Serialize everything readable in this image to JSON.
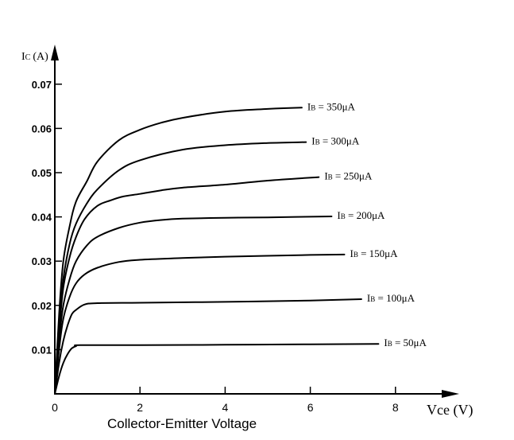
{
  "chart_data": {
    "type": "line",
    "title": "",
    "xlabel": "Collector-Emitter Voltage",
    "x_axis_name": "Vce (V)",
    "y_axis_name": "Ic (A)",
    "x_ticks": [
      0,
      2,
      4,
      6,
      8
    ],
    "y_ticks": [
      0.01,
      0.02,
      0.03,
      0.04,
      0.05,
      0.06,
      0.07
    ],
    "y_tick_labels": [
      "0.01",
      "0.02",
      "0.03",
      "0.04",
      "0.05",
      "0.06",
      "0.07"
    ],
    "xlim": [
      0,
      9
    ],
    "ylim": [
      0,
      0.077
    ],
    "grid": false,
    "series": [
      {
        "name": "IB = 50μA",
        "base": "B",
        "value": " = 50μA",
        "x": [
          0,
          0.1,
          0.2,
          0.3,
          0.4,
          0.5,
          0.6,
          2,
          4,
          6,
          7.6
        ],
        "y": [
          0,
          0.004,
          0.007,
          0.009,
          0.0103,
          0.0108,
          0.011,
          0.011,
          0.0111,
          0.0112,
          0.0113
        ]
      },
      {
        "name": "IB = 100μA",
        "base": "B",
        "value": " = 100μA",
        "x": [
          0,
          0.1,
          0.2,
          0.3,
          0.4,
          0.5,
          0.7,
          1.0,
          2,
          4,
          6,
          7.2
        ],
        "y": [
          0,
          0.007,
          0.012,
          0.0155,
          0.018,
          0.019,
          0.0202,
          0.0205,
          0.0206,
          0.0208,
          0.0211,
          0.0214
        ]
      },
      {
        "name": "IB = 150μA",
        "base": "B",
        "value": " = 150μA",
        "x": [
          0,
          0.1,
          0.2,
          0.35,
          0.5,
          0.7,
          1.0,
          1.5,
          2,
          3,
          4,
          6,
          6.8
        ],
        "y": [
          0,
          0.01,
          0.017,
          0.022,
          0.025,
          0.027,
          0.0285,
          0.0298,
          0.0303,
          0.0307,
          0.031,
          0.0314,
          0.0315
        ]
      },
      {
        "name": "IB = 200μA",
        "base": "B",
        "value": " = 200μA",
        "x": [
          0,
          0.1,
          0.2,
          0.35,
          0.5,
          0.75,
          1.0,
          1.5,
          2,
          2.5,
          3,
          4,
          5,
          6.5
        ],
        "y": [
          0,
          0.012,
          0.02,
          0.026,
          0.03,
          0.0335,
          0.0355,
          0.0375,
          0.0387,
          0.0393,
          0.0396,
          0.0398,
          0.0399,
          0.0401
        ]
      },
      {
        "name": "IB = 250μA",
        "base": "B",
        "value": " = 250μA",
        "x": [
          0,
          0.1,
          0.2,
          0.35,
          0.5,
          0.7,
          1.0,
          1.3,
          1.6,
          2,
          2.5,
          3,
          4,
          5,
          6.2
        ],
        "y": [
          0,
          0.014,
          0.024,
          0.031,
          0.0355,
          0.0395,
          0.0425,
          0.0437,
          0.0446,
          0.0452,
          0.046,
          0.0466,
          0.0473,
          0.0482,
          0.049
        ]
      },
      {
        "name": "IB = 300μA",
        "base": "B",
        "value": " = 300μA",
        "x": [
          0,
          0.1,
          0.2,
          0.35,
          0.5,
          0.75,
          1.0,
          1.5,
          2,
          3,
          4,
          5,
          5.9
        ],
        "y": [
          0,
          0.016,
          0.026,
          0.034,
          0.0385,
          0.043,
          0.0462,
          0.0505,
          0.0528,
          0.0552,
          0.0562,
          0.0567,
          0.0569
        ]
      },
      {
        "name": "IB = 350μA",
        "base": "B",
        "value": " = 350μA",
        "x": [
          0,
          0.1,
          0.2,
          0.35,
          0.5,
          0.75,
          1.0,
          1.5,
          2,
          2.5,
          3,
          4,
          5,
          5.8
        ],
        "y": [
          0,
          0.018,
          0.03,
          0.038,
          0.0435,
          0.048,
          0.0525,
          0.0573,
          0.0597,
          0.0613,
          0.0624,
          0.0638,
          0.0644,
          0.0647
        ]
      }
    ]
  }
}
